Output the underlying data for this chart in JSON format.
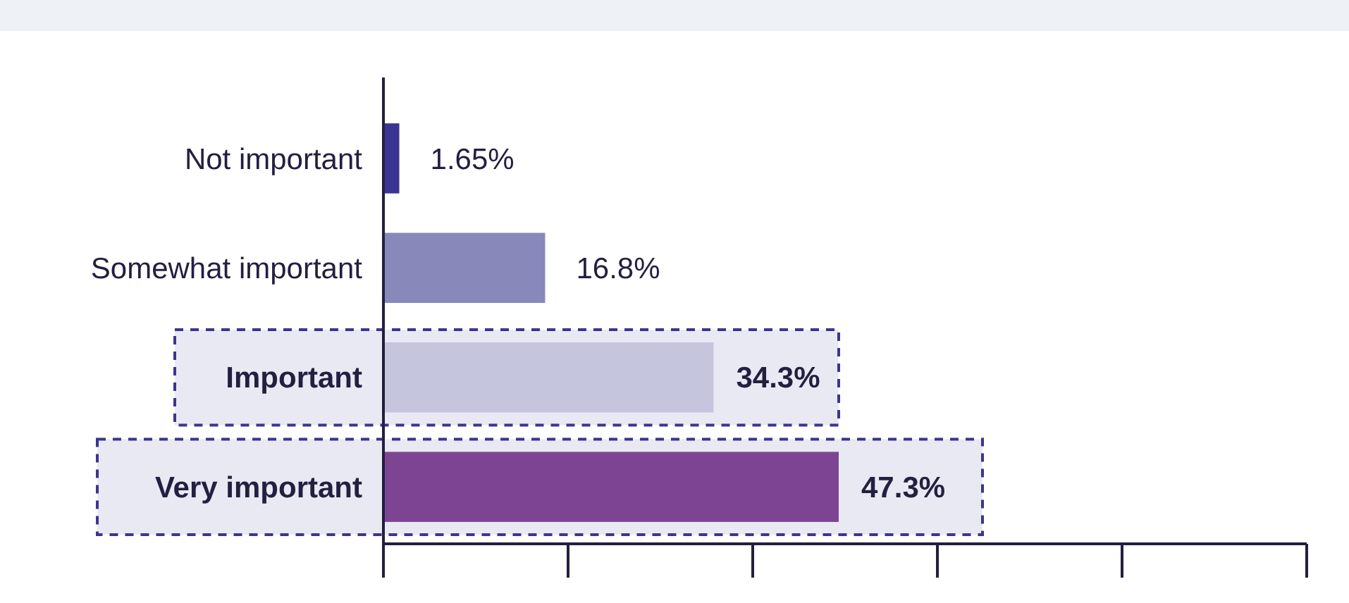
{
  "chart_data": {
    "type": "bar",
    "orientation": "horizontal",
    "categories": [
      "Not important",
      "Somewhat important",
      "Important",
      "Very important"
    ],
    "values": [
      1.65,
      16.8,
      34.3,
      47.3
    ],
    "colors": [
      "#3a3590",
      "#8888bb",
      "#c5c5de",
      "#7e4494"
    ],
    "value_labels": [
      "1.65%",
      "16.8%",
      "34.3%",
      "47.3%"
    ]
  }
}
